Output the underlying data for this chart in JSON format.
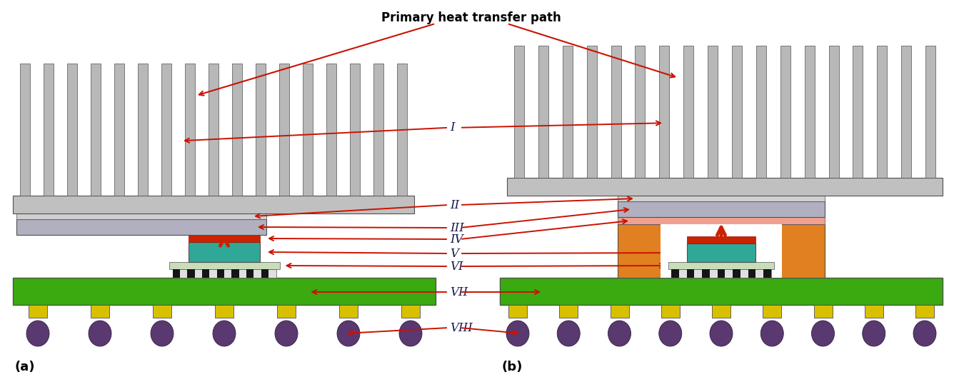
{
  "title": "Primary heat transfer path",
  "title_fontsize": 12,
  "title_fontweight": "bold",
  "label_a": "(a)",
  "label_b": "(b)",
  "colors": {
    "heatsink_body": "#c0c0c0",
    "heatsink_fins": "#b8b8b8",
    "heatsink_base_top": "#d0d0d0",
    "ihs_silver": "#b0b0c0",
    "ihs_orange": "#e08020",
    "tim2_gray": "#d0d0d0",
    "tim1_pink": "#f0a090",
    "tim1_red": "#cc2200",
    "silicon_teal": "#30a898",
    "underfill_lt": "#c8ddb8",
    "substrate_green": "#3aaa10",
    "solder_yellow": "#d8c000",
    "ball_purple": "#5a3870",
    "arrow_red": "#cc1100",
    "border": "#505050",
    "white": "#ffffff",
    "black": "#000000",
    "label_color": "#1a1a50"
  },
  "figsize": [
    13.36,
    5.35
  ],
  "dpi": 100
}
